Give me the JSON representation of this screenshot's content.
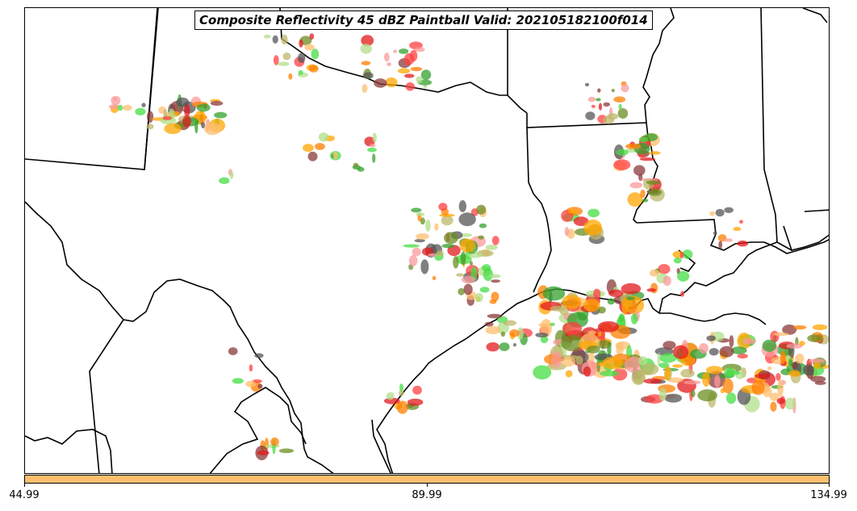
{
  "title": "Composite Reflectivity 45 dBZ Paintball Valid: 202105182100f014",
  "colorbar": {
    "color": "#fdbf6f",
    "tick_labels": [
      "44.99",
      "89.99",
      "134.99"
    ]
  },
  "member_colors": [
    "#e31a1c",
    "#fb9a99",
    "#33a02c",
    "#b2df8a",
    "#ff7f00",
    "#fdbf6f",
    "#8b3a3a",
    "#555555",
    "#6b8e23",
    "#bdb76b",
    "#ff4040",
    "#ffa500",
    "#44dd44"
  ]
}
